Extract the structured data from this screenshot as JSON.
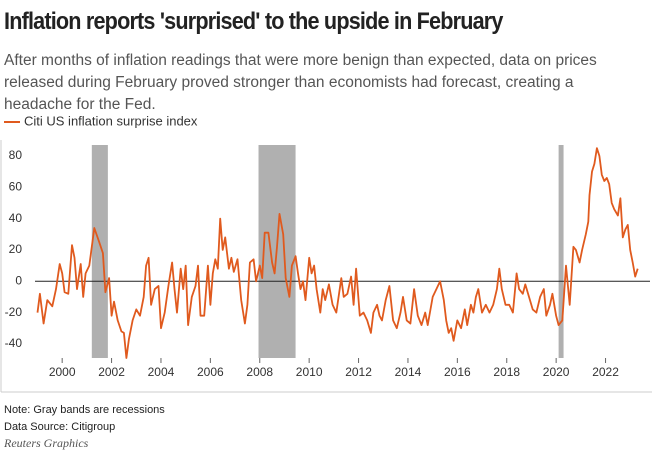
{
  "chart_data": {
    "type": "line",
    "title": "Inflation reports 'surprised' to the upside in February",
    "subtitle": "After months of inflation readings that were more benign than expected, data on prices released during February proved stronger than economists had forecast, creating a headache for the Fed.",
    "note": "Note: Gray bands are recessions",
    "source": "Data Source: Citigroup",
    "credit": "Reuters Graphics",
    "recession_color": "#b0b0b0",
    "recessions": [
      [
        2001.2,
        2001.85
      ],
      [
        2007.95,
        2009.45
      ],
      [
        2020.1,
        2020.3
      ]
    ],
    "x": [
      1999.0,
      1999.1,
      1999.25,
      1999.4,
      1999.6,
      1999.75,
      1999.9,
      2000.0,
      2000.1,
      2000.25,
      2000.4,
      2000.5,
      2000.6,
      2000.75,
      2000.85,
      2000.95,
      2001.1,
      2001.3,
      2001.5,
      2001.65,
      2001.75,
      2001.9,
      2002.0,
      2002.1,
      2002.25,
      2002.4,
      2002.5,
      2002.6,
      2002.7,
      2002.85,
      2003.0,
      2003.15,
      2003.3,
      2003.4,
      2003.5,
      2003.6,
      2003.75,
      2003.9,
      2004.0,
      2004.15,
      2004.3,
      2004.45,
      2004.55,
      2004.65,
      2004.8,
      2004.9,
      2005.0,
      2005.1,
      2005.25,
      2005.4,
      2005.5,
      2005.6,
      2005.75,
      2005.9,
      2006.0,
      2006.1,
      2006.2,
      2006.3,
      2006.4,
      2006.5,
      2006.6,
      2006.75,
      2006.85,
      2006.95,
      2007.1,
      2007.25,
      2007.4,
      2007.5,
      2007.6,
      2007.75,
      2007.85,
      2008.0,
      2008.1,
      2008.2,
      2008.35,
      2008.5,
      2008.6,
      2008.7,
      2008.8,
      2008.95,
      2009.05,
      2009.2,
      2009.3,
      2009.45,
      2009.55,
      2009.65,
      2009.75,
      2009.85,
      2010.0,
      2010.1,
      2010.2,
      2010.3,
      2010.45,
      2010.55,
      2010.65,
      2010.8,
      2010.95,
      2011.1,
      2011.3,
      2011.4,
      2011.55,
      2011.7,
      2011.8,
      2011.9,
      2012.05,
      2012.2,
      2012.35,
      2012.5,
      2012.6,
      2012.75,
      2012.85,
      2012.95,
      2013.1,
      2013.25,
      2013.4,
      2013.55,
      2013.7,
      2013.8,
      2013.95,
      2014.1,
      2014.25,
      2014.4,
      2014.55,
      2014.7,
      2014.8,
      2015.0,
      2015.15,
      2015.3,
      2015.45,
      2015.55,
      2015.65,
      2015.75,
      2015.85,
      2016.0,
      2016.15,
      2016.3,
      2016.4,
      2016.55,
      2016.65,
      2016.75,
      2016.85,
      2017.0,
      2017.15,
      2017.3,
      2017.45,
      2017.6,
      2017.7,
      2017.8,
      2017.95,
      2018.1,
      2018.25,
      2018.4,
      2018.5,
      2018.65,
      2018.75,
      2018.9,
      2019.05,
      2019.2,
      2019.35,
      2019.5,
      2019.6,
      2019.75,
      2019.85,
      2020.0,
      2020.1,
      2020.25,
      2020.4,
      2020.55,
      2020.7,
      2020.8,
      2020.95,
      2021.05,
      2021.2,
      2021.3,
      2021.35,
      2021.45,
      2021.55,
      2021.65,
      2021.75,
      2021.85,
      2021.95,
      2022.05,
      2022.15,
      2022.25,
      2022.35,
      2022.5,
      2022.6,
      2022.7,
      2022.8,
      2022.9,
      2023.0,
      2023.1,
      2023.2,
      2023.3
    ],
    "series": [
      {
        "name": "Citi US inflation surprise index",
        "color": "#e05a1e",
        "values": [
          -20,
          -8,
          -27,
          -12,
          -16,
          -5,
          11,
          5,
          -7,
          -8,
          23,
          15,
          -5,
          11,
          -10,
          5,
          10,
          34,
          25,
          18,
          -7,
          2,
          -22,
          -13,
          -25,
          -32,
          -33,
          -49,
          -37,
          -25,
          -18,
          -22,
          -10,
          10,
          15,
          -15,
          -5,
          -3,
          -30,
          -20,
          -3,
          12,
          -5,
          -20,
          8,
          -5,
          10,
          -28,
          -10,
          -3,
          10,
          -22,
          -22,
          10,
          -15,
          5,
          14,
          8,
          40,
          20,
          28,
          8,
          15,
          6,
          14,
          -12,
          -27,
          -15,
          12,
          14,
          0,
          10,
          2,
          31,
          31,
          12,
          5,
          22,
          43,
          30,
          2,
          -10,
          10,
          16,
          5,
          -5,
          0,
          -12,
          15,
          5,
          10,
          -5,
          -20,
          -5,
          -12,
          -2,
          -15,
          -20,
          2,
          -10,
          -8,
          3,
          -15,
          8,
          -22,
          -20,
          -25,
          -33,
          -20,
          -15,
          -22,
          -25,
          -12,
          -3,
          -25,
          -30,
          -20,
          -10,
          -25,
          -27,
          -5,
          -22,
          -28,
          -20,
          -28,
          -10,
          -5,
          0,
          -12,
          -25,
          -33,
          -30,
          -38,
          -25,
          -30,
          -18,
          -28,
          -15,
          -20,
          -10,
          -5,
          -20,
          -15,
          -20,
          -15,
          -5,
          8,
          -5,
          -15,
          -15,
          -20,
          5,
          -5,
          -8,
          -2,
          -10,
          -18,
          -20,
          -10,
          -5,
          -22,
          -15,
          -8,
          -22,
          -28,
          -25,
          10,
          -15,
          22,
          20,
          12,
          20,
          30,
          38,
          55,
          70,
          75,
          85,
          80,
          68,
          64,
          66,
          62,
          50,
          46,
          42,
          53,
          28,
          33,
          36,
          20,
          12,
          3,
          8
        ]
      }
    ],
    "xlim": [
      1998.9,
      2023.8
    ],
    "ylim": [
      -49,
      87
    ],
    "xticks": [
      2000,
      2002,
      2004,
      2006,
      2008,
      2010,
      2012,
      2014,
      2016,
      2018,
      2020,
      2022
    ],
    "yticks": [
      -40,
      -20,
      0,
      20,
      40,
      60,
      80
    ],
    "zero_line": true
  }
}
